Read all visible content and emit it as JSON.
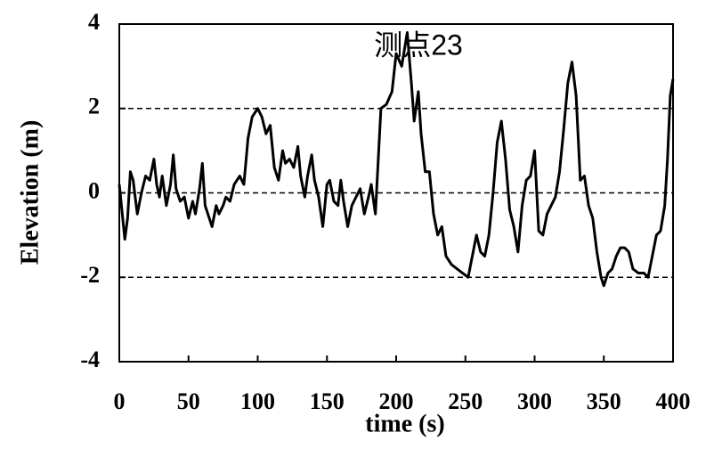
{
  "chart_data": {
    "type": "line",
    "title": "测点23",
    "xlabel": "time (s)",
    "ylabel": "Elevation (m)",
    "xlim": [
      0,
      400
    ],
    "ylim": [
      -4,
      4
    ],
    "xticks": [
      0,
      50,
      100,
      150,
      200,
      250,
      300,
      350,
      400
    ],
    "yticks": [
      -4,
      -2,
      0,
      2,
      4
    ],
    "grid": true,
    "series": [
      {
        "color": "#000000",
        "x": [
          0,
          4,
          6,
          8,
          10,
          13,
          16,
          19,
          22,
          25,
          27,
          29,
          31,
          34,
          37,
          39,
          41,
          44,
          47,
          50,
          53,
          55,
          58,
          60,
          62,
          64,
          67,
          70,
          72,
          75,
          77,
          80,
          83,
          87,
          90,
          93,
          96,
          100,
          103,
          106,
          109,
          112,
          115,
          118,
          120,
          123,
          126,
          129,
          131,
          134,
          136,
          139,
          141,
          144,
          147,
          150,
          152,
          155,
          158,
          160,
          162,
          165,
          168,
          171,
          174,
          177,
          180,
          182,
          185,
          189,
          193,
          197,
          200,
          204,
          208,
          211,
          213,
          216,
          218,
          221,
          224,
          227,
          230,
          233,
          236,
          240,
          244,
          248,
          252,
          255,
          258,
          261,
          264,
          267,
          270,
          273,
          276,
          279,
          282,
          285,
          288,
          291,
          294,
          297,
          300,
          303,
          306,
          309,
          312,
          315,
          318,
          321,
          324,
          327,
          330,
          333,
          336,
          339,
          342,
          345,
          348,
          350,
          353,
          356,
          359,
          362,
          365,
          368,
          371,
          375,
          379,
          382,
          385,
          388,
          391,
          394,
          396,
          398,
          400
        ],
        "values": [
          0.2,
          -1.1,
          -0.6,
          0.5,
          0.3,
          -0.5,
          0.0,
          0.4,
          0.3,
          0.8,
          0.2,
          -0.1,
          0.4,
          -0.3,
          0.2,
          0.9,
          0.1,
          -0.2,
          -0.1,
          -0.6,
          -0.2,
          -0.5,
          0.1,
          0.7,
          -0.3,
          -0.5,
          -0.8,
          -0.3,
          -0.5,
          -0.3,
          -0.1,
          -0.2,
          0.2,
          0.4,
          0.2,
          1.3,
          1.8,
          2.0,
          1.8,
          1.4,
          1.6,
          0.6,
          0.3,
          1.0,
          0.7,
          0.8,
          0.6,
          1.1,
          0.4,
          -0.1,
          0.4,
          0.9,
          0.3,
          -0.1,
          -0.8,
          0.2,
          0.3,
          -0.2,
          -0.3,
          0.3,
          -0.2,
          -0.8,
          -0.3,
          -0.1,
          0.1,
          -0.5,
          -0.1,
          0.2,
          -0.5,
          2.0,
          2.1,
          2.4,
          3.3,
          3.0,
          3.8,
          2.6,
          1.7,
          2.4,
          1.4,
          0.5,
          0.5,
          -0.5,
          -1.0,
          -0.8,
          -1.5,
          -1.7,
          -1.8,
          -1.9,
          -2.0,
          -1.5,
          -1.0,
          -1.4,
          -1.5,
          -1.0,
          0.0,
          1.2,
          1.7,
          0.8,
          -0.4,
          -0.8,
          -1.4,
          -0.3,
          0.3,
          0.4,
          1.0,
          -0.9,
          -1.0,
          -0.5,
          -0.3,
          -0.1,
          0.5,
          1.5,
          2.6,
          3.1,
          2.3,
          0.3,
          0.4,
          -0.3,
          -0.6,
          -1.4,
          -2.0,
          -2.2,
          -1.9,
          -1.8,
          -1.5,
          -1.3,
          -1.3,
          -1.4,
          -1.8,
          -1.9,
          -1.9,
          -2.0,
          -1.5,
          -1.0,
          -0.9,
          -0.3,
          0.8,
          2.3,
          2.7
        ]
      }
    ]
  }
}
